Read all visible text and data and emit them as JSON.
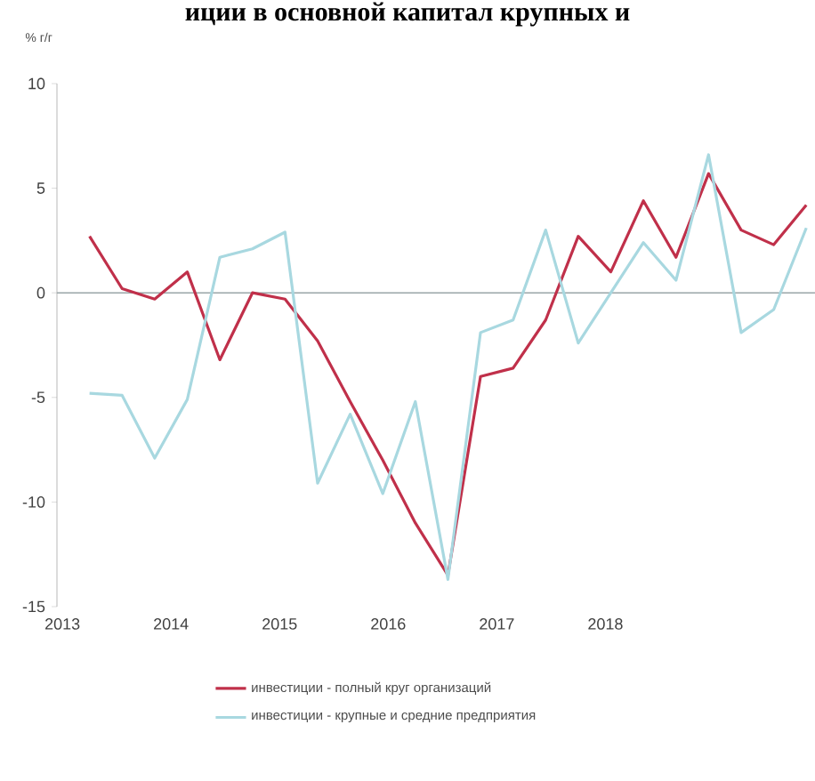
{
  "chart_data": {
    "type": "line",
    "title": "иции в основной капитал крупных и",
    "ylabel": "% г/г",
    "x": [
      2013.25,
      2013.55,
      2013.85,
      2014.15,
      2014.45,
      2014.75,
      2015.05,
      2015.35,
      2015.65,
      2015.95,
      2016.25,
      2016.55,
      2016.85,
      2017.15,
      2017.45,
      2017.75,
      2018.05,
      2018.35,
      2018.65,
      2018.95,
      2019.25,
      2019.55,
      2019.85
    ],
    "xlim": [
      2012.95,
      2019.93
    ],
    "xticks": [
      2013,
      2014,
      2015,
      2016,
      2017,
      2018
    ],
    "ylim": [
      -15,
      10
    ],
    "yticks": [
      -15,
      -10,
      -5,
      0,
      5,
      10
    ],
    "ref_lines": [
      {
        "axis": "y",
        "value": 0,
        "color": "#9aa5a8"
      }
    ],
    "series": [
      {
        "name": "инвестиции - полный круг организаций",
        "color": "#c0304a",
        "values": [
          2.7,
          0.2,
          -0.3,
          1.0,
          -3.2,
          0.0,
          -0.3,
          -2.3,
          -5.2,
          -8.0,
          -11.0,
          -13.5,
          -4.0,
          -3.6,
          -1.3,
          2.7,
          1.0,
          4.4,
          1.7,
          5.7,
          3.0,
          2.3,
          4.2
        ]
      },
      {
        "name": "инвестиции - крупные и средние предприятия",
        "color": "#a8d8e0",
        "values": [
          -4.8,
          -4.9,
          -7.9,
          -5.1,
          1.7,
          2.1,
          2.9,
          -9.1,
          -5.8,
          -9.6,
          -5.2,
          -13.7,
          -1.9,
          -1.3,
          3.0,
          -2.4,
          0.0,
          2.4,
          0.6,
          6.6,
          -1.9,
          -0.8,
          3.1
        ]
      }
    ],
    "legend": "bottom",
    "grid": false,
    "marker": "none",
    "line_style": "solid"
  }
}
